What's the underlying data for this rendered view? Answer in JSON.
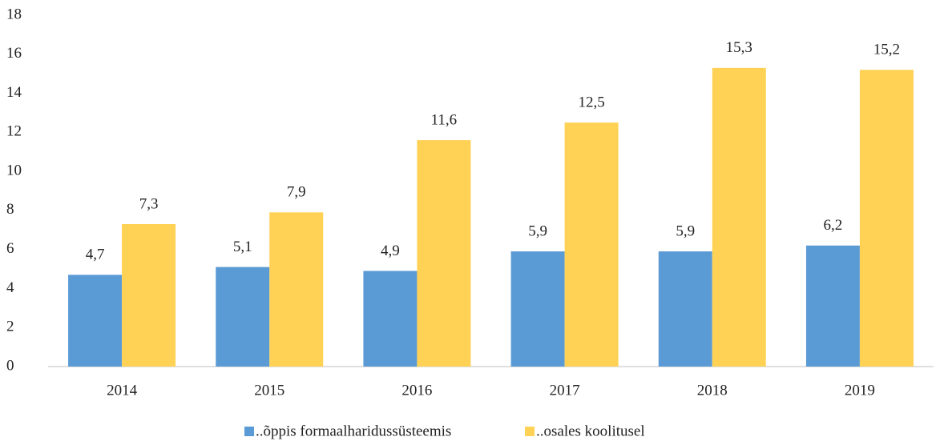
{
  "chart_data": {
    "type": "bar",
    "categories": [
      "2014",
      "2015",
      "2016",
      "2017",
      "2018",
      "2019"
    ],
    "series": [
      {
        "name": "..õppis formaalharidussüsteemis",
        "color": "#5b9bd5",
        "values": [
          4.7,
          5.1,
          4.9,
          5.9,
          5.9,
          6.2
        ],
        "value_labels": [
          "4,7",
          "5,1",
          "4,9",
          "5,9",
          "5,9",
          "6,2"
        ]
      },
      {
        "name": "..osales koolitusel",
        "color": "#ffd154",
        "values": [
          7.3,
          7.9,
          11.6,
          12.5,
          15.3,
          15.2
        ],
        "value_labels": [
          "7,3",
          "7,9",
          "11,6",
          "12,5",
          "15,3",
          "15,2"
        ]
      }
    ],
    "ylim": [
      0,
      18
    ],
    "yticks": [
      0,
      2,
      4,
      6,
      8,
      10,
      12,
      14,
      16,
      18
    ],
    "grid": false,
    "legend": "bottom"
  }
}
